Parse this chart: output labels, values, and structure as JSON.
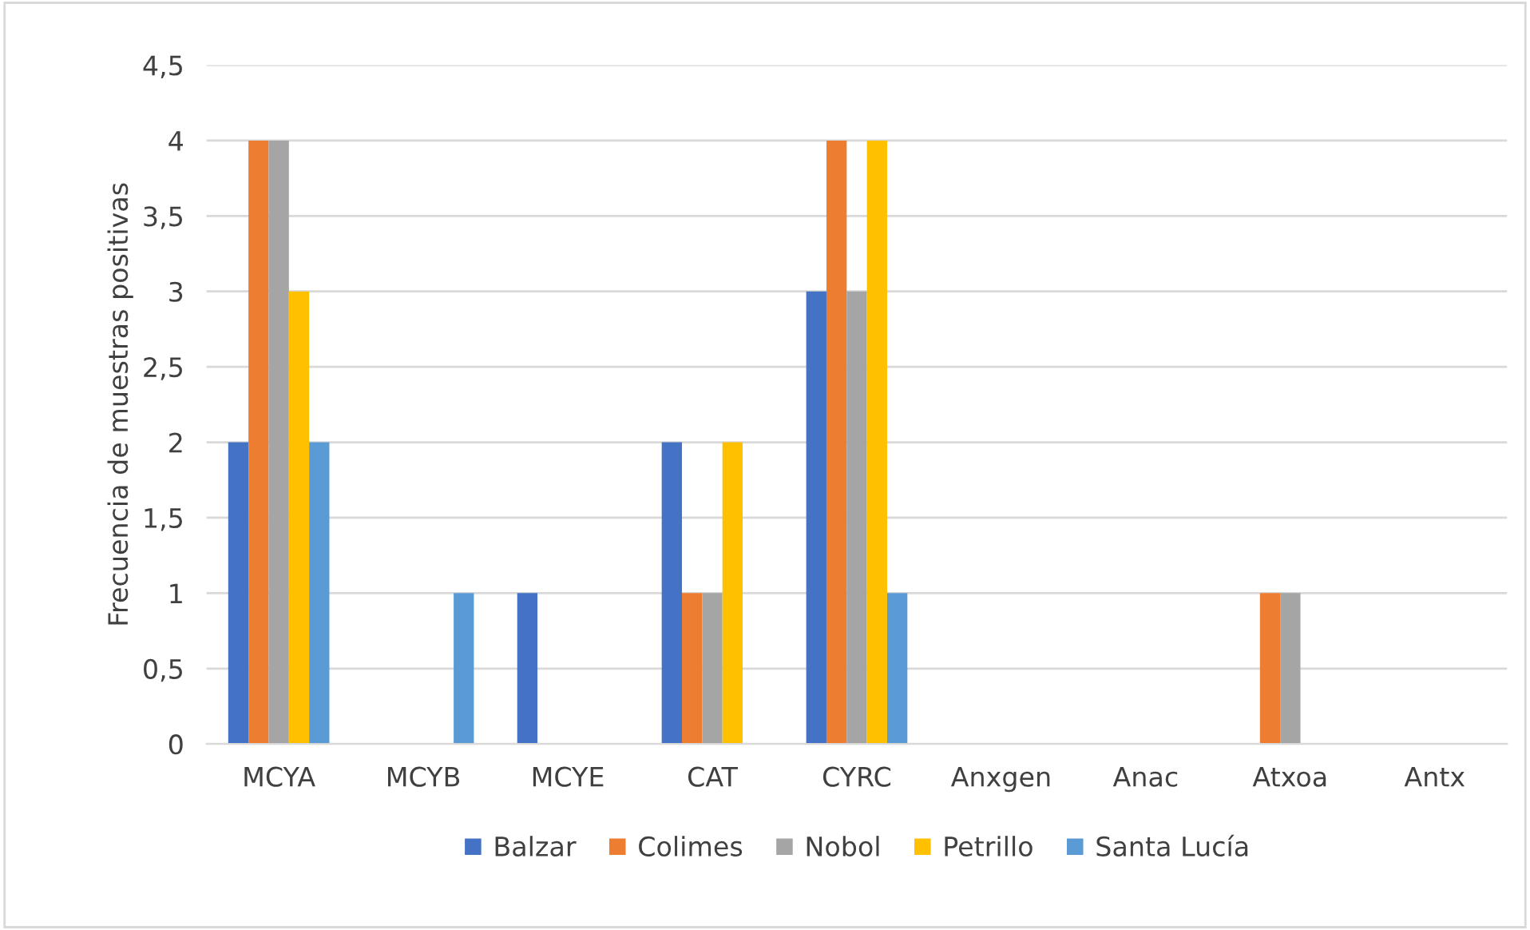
{
  "chart_data": {
    "type": "bar",
    "ylabel": "Frecuencia de muestras positivas",
    "categories": [
      "MCYA",
      "MCYB",
      "MCYE",
      "CAT",
      "CYRC",
      "Anxgen",
      "Anac",
      "Atxoa",
      "Antx"
    ],
    "series": [
      {
        "name": "Balzar",
        "color": "#4472c4",
        "values": [
          2,
          0,
          1,
          2,
          3,
          0,
          0,
          0,
          0
        ]
      },
      {
        "name": "Colimes",
        "color": "#ed7d31",
        "values": [
          4,
          0,
          0,
          1,
          4,
          0,
          0,
          1,
          0
        ]
      },
      {
        "name": "Nobol",
        "color": "#a5a5a5",
        "values": [
          4,
          0,
          0,
          1,
          3,
          0,
          0,
          1,
          0
        ]
      },
      {
        "name": "Petrillo",
        "color": "#ffc000",
        "values": [
          3,
          0,
          0,
          2,
          4,
          0,
          0,
          0,
          0
        ]
      },
      {
        "name": "Santa Lucía",
        "color": "#5b9bd5",
        "values": [
          2,
          1,
          0,
          0,
          1,
          0,
          0,
          0,
          0
        ]
      }
    ],
    "ylim": [
      0,
      4.5
    ],
    "yticks": [
      0,
      {
        "value": 0.5,
        "label": "0,5"
      },
      1,
      {
        "value": 1.5,
        "label": "1,5"
      },
      2,
      {
        "value": 2.5,
        "label": "2,5"
      },
      3,
      {
        "value": 3.5,
        "label": "3,5"
      },
      4,
      {
        "value": 4.5,
        "label": "4,5"
      }
    ],
    "grid": "y",
    "legend": "bottom"
  }
}
